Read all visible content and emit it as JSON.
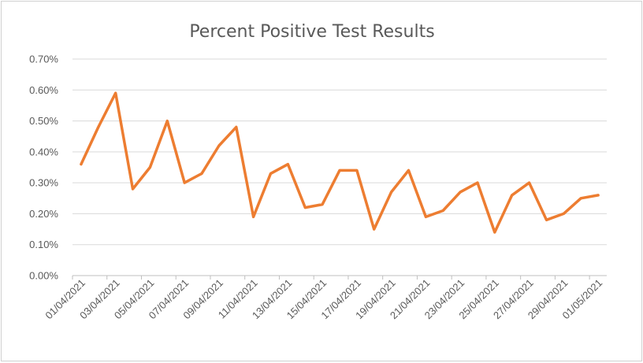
{
  "chart_data": {
    "type": "line",
    "title": "Percent Positive Test Results",
    "xlabel": "",
    "ylabel": "",
    "ylim": [
      0,
      0.007
    ],
    "y_ticks": [
      "0.00%",
      "0.10%",
      "0.20%",
      "0.30%",
      "0.40%",
      "0.50%",
      "0.60%",
      "0.70%"
    ],
    "grid": true,
    "legend": "none",
    "x_tick_labels": [
      "01/04/2021",
      "03/04/2021",
      "05/04/2021",
      "07/04/2021",
      "09/04/2021",
      "11/04/2021",
      "13/04/2021",
      "15/04/2021",
      "17/04/2021",
      "19/04/2021",
      "21/04/2021",
      "23/04/2021",
      "25/04/2021",
      "27/04/2021",
      "29/04/2021",
      "01/05/2021"
    ],
    "x": [
      "01/04/2021",
      "02/04/2021",
      "03/04/2021",
      "04/04/2021",
      "05/04/2021",
      "06/04/2021",
      "07/04/2021",
      "08/04/2021",
      "09/04/2021",
      "10/04/2021",
      "11/04/2021",
      "12/04/2021",
      "13/04/2021",
      "14/04/2021",
      "15/04/2021",
      "16/04/2021",
      "17/04/2021",
      "18/04/2021",
      "19/04/2021",
      "20/04/2021",
      "21/04/2021",
      "22/04/2021",
      "23/04/2021",
      "24/04/2021",
      "25/04/2021",
      "26/04/2021",
      "27/04/2021",
      "28/04/2021",
      "29/04/2021",
      "30/04/2021",
      "01/05/2021"
    ],
    "series": [
      {
        "color": "#ed7d31",
        "values": [
          0.0036,
          0.0048,
          0.0059,
          0.0028,
          0.0035,
          0.005,
          0.003,
          0.0033,
          0.0042,
          0.0048,
          0.0019,
          0.0033,
          0.0036,
          0.0022,
          0.0023,
          0.0034,
          0.0034,
          0.0015,
          0.0027,
          0.0034,
          0.0019,
          0.0021,
          0.0027,
          0.003,
          0.0014,
          0.0026,
          0.003,
          0.0018,
          0.002,
          0.0025,
          0.0026
        ]
      }
    ]
  }
}
